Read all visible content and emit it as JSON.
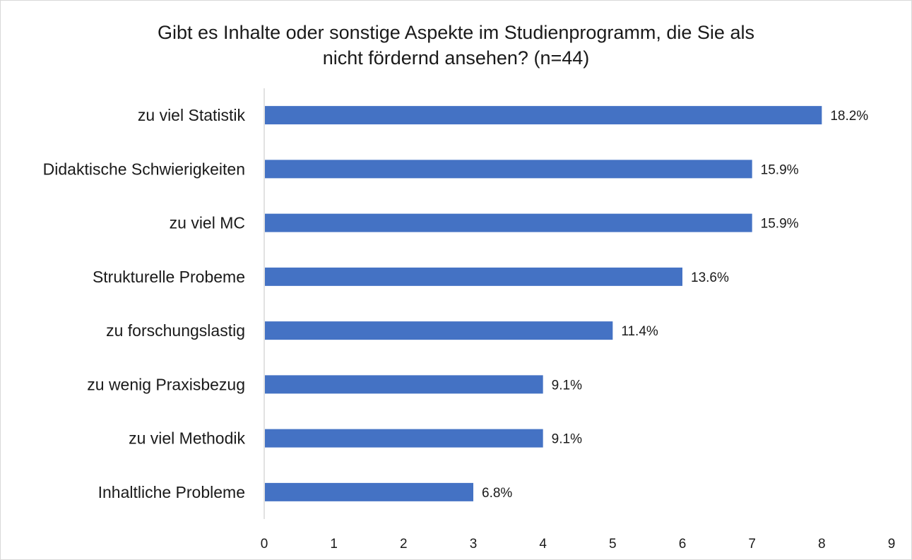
{
  "chart_data": {
    "type": "bar",
    "orientation": "horizontal",
    "title_line1": "Gibt es Inhalte oder sonstige Aspekte im Studienprogramm, die Sie als",
    "title_line2": "nicht fördernd ansehen? (n=44)",
    "categories": [
      "zu viel Statistik",
      "Didaktische Schwierigkeiten",
      "zu viel MC",
      "Strukturelle Probeme",
      "zu forschungslastig",
      "zu wenig Praxisbezug",
      "zu viel Methodik",
      "Inhaltliche Probleme"
    ],
    "values": [
      8,
      7,
      7,
      6,
      5,
      4,
      4,
      3
    ],
    "data_labels": [
      "18.2%",
      "15.9%",
      "15.9%",
      "13.6%",
      "11.4%",
      "9.1%",
      "9.1%",
      "6.8%"
    ],
    "xlim": [
      0,
      9
    ],
    "xticks": [
      "0",
      "1",
      "2",
      "3",
      "4",
      "5",
      "6",
      "7",
      "8",
      "9"
    ],
    "bar_color": "#4472c4",
    "grid": false
  }
}
